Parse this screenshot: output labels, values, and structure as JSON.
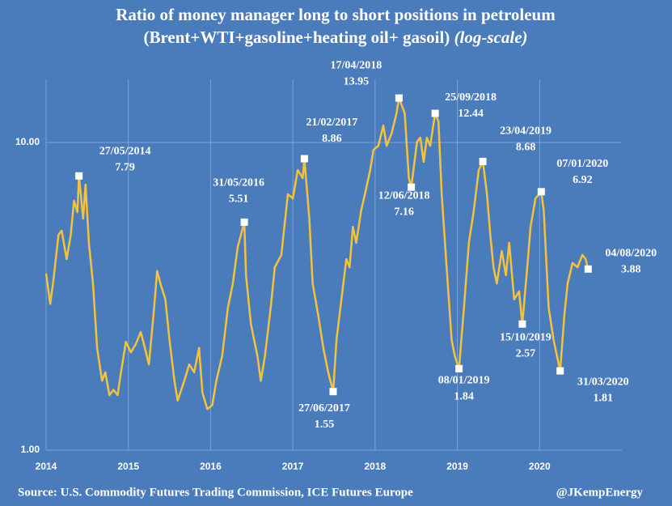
{
  "chart_data": {
    "type": "line",
    "title": "Ratio of money manager long to short positions in petroleum",
    "subtitle": "(Brent+WTI+gasoline+heating oil+ gasoil)",
    "scale_note": "(log-scale)",
    "source": "Source: U.S. Commodity Futures Trading Commission, ICE Futures Europe",
    "credit": "@JKempEnergy",
    "color": "#f5c33b",
    "log_scale": true,
    "grid": true,
    "xlim": [
      2014,
      2021
    ],
    "xticks": [
      2014,
      2015,
      2016,
      2017,
      2018,
      2019,
      2020
    ],
    "ylim": [
      1,
      16
    ],
    "yticks": [
      {
        "value": 1,
        "label": "1.00"
      },
      {
        "value": 10,
        "label": "10.00"
      }
    ],
    "x": [
      2014.0,
      2014.05,
      2014.09,
      2014.15,
      2014.19,
      2014.25,
      2014.3,
      2014.34,
      2014.38,
      2014.4,
      2014.45,
      2014.48,
      2014.52,
      2014.57,
      2014.62,
      2014.68,
      2014.72,
      2014.77,
      2014.82,
      2014.87,
      2014.91,
      2014.97,
      2015.03,
      2015.09,
      2015.15,
      2015.19,
      2015.25,
      2015.31,
      2015.35,
      2015.39,
      2015.45,
      2015.5,
      2015.56,
      2015.6,
      2015.68,
      2015.74,
      2015.8,
      2015.86,
      2015.9,
      2015.96,
      2016.02,
      2016.07,
      2016.14,
      2016.21,
      2016.27,
      2016.33,
      2016.41,
      2016.43,
      2016.49,
      2016.57,
      2016.61,
      2016.66,
      2016.73,
      2016.78,
      2016.86,
      2016.94,
      2017.0,
      2017.06,
      2017.12,
      2017.14,
      2017.2,
      2017.24,
      2017.31,
      2017.37,
      2017.43,
      2017.49,
      2017.53,
      2017.59,
      2017.65,
      2017.69,
      2017.73,
      2017.77,
      2017.83,
      2017.88,
      2017.94,
      2017.98,
      2018.04,
      2018.1,
      2018.14,
      2018.2,
      2018.26,
      2018.29,
      2018.36,
      2018.41,
      2018.44,
      2018.51,
      2018.55,
      2018.59,
      2018.63,
      2018.67,
      2018.73,
      2018.77,
      2018.81,
      2018.87,
      2018.93,
      2018.97,
      2019.02,
      2019.08,
      2019.14,
      2019.2,
      2019.26,
      2019.31,
      2019.36,
      2019.4,
      2019.44,
      2019.48,
      2019.54,
      2019.59,
      2019.63,
      2019.69,
      2019.75,
      2019.79,
      2019.85,
      2019.89,
      2019.95,
      2020.02,
      2020.05,
      2020.11,
      2020.17,
      2020.25,
      2020.3,
      2020.34,
      2020.4,
      2020.46,
      2020.52,
      2020.56,
      2020.59
    ],
    "values": [
      3.75,
      2.99,
      3.59,
      5.01,
      5.17,
      4.18,
      5.01,
      6.47,
      5.94,
      7.79,
      5.66,
      7.3,
      4.72,
      3.48,
      2.15,
      1.68,
      1.79,
      1.51,
      1.57,
      1.51,
      1.79,
      2.25,
      2.08,
      2.21,
      2.42,
      2.21,
      1.9,
      2.82,
      3.82,
      3.48,
      3.09,
      2.28,
      1.68,
      1.45,
      1.68,
      1.9,
      1.79,
      2.15,
      1.54,
      1.36,
      1.4,
      1.68,
      2.02,
      2.9,
      3.48,
      4.58,
      5.51,
      3.7,
      2.57,
      2.02,
      1.68,
      2.02,
      2.9,
      3.93,
      4.31,
      6.79,
      6.58,
      8.14,
      7.66,
      8.86,
      5.66,
      3.48,
      2.73,
      2.15,
      1.79,
      1.55,
      2.28,
      3.09,
      4.18,
      3.93,
      5.32,
      4.72,
      6.01,
      6.87,
      8.14,
      9.47,
      9.76,
      11.36,
      9.76,
      10.69,
      12.44,
      13.95,
      12.44,
      7.66,
      7.16,
      10.06,
      10.37,
      8.65,
      10.37,
      9.76,
      12.44,
      11.7,
      6.79,
      3.93,
      2.28,
      2.02,
      1.84,
      2.9,
      4.72,
      6.01,
      8.14,
      8.68,
      6.79,
      5.01,
      3.93,
      3.48,
      4.44,
      3.7,
      4.72,
      3.09,
      3.28,
      2.57,
      3.93,
      5.32,
      6.58,
      6.92,
      6.01,
      2.9,
      2.28,
      1.81,
      2.73,
      3.48,
      4.06,
      3.93,
      4.31,
      4.18,
      3.88
    ],
    "annotations": [
      {
        "date": "27/05/2014",
        "value": 7.79,
        "x": 2014.4
      },
      {
        "date": "31/05/2016",
        "value": 5.51,
        "x": 2016.41
      },
      {
        "date": "21/02/2017",
        "value": 8.86,
        "x": 2017.14
      },
      {
        "date": "27/06/2017",
        "value": 1.55,
        "x": 2017.49
      },
      {
        "date": "17/04/2018",
        "value": 13.95,
        "x": 2018.29
      },
      {
        "date": "12/06/2018",
        "value": 7.16,
        "x": 2018.44
      },
      {
        "date": "25/09/2018",
        "value": 12.44,
        "x": 2018.73
      },
      {
        "date": "08/01/2019",
        "value": 1.84,
        "x": 2019.02
      },
      {
        "date": "23/04/2019",
        "value": 8.68,
        "x": 2019.31
      },
      {
        "date": "15/10/2019",
        "value": 2.57,
        "x": 2019.79
      },
      {
        "date": "07/01/2020",
        "value": 6.92,
        "x": 2020.02
      },
      {
        "date": "31/03/2020",
        "value": 1.81,
        "x": 2020.25
      },
      {
        "date": "04/08/2020",
        "value": 3.88,
        "x": 2020.59
      }
    ]
  }
}
